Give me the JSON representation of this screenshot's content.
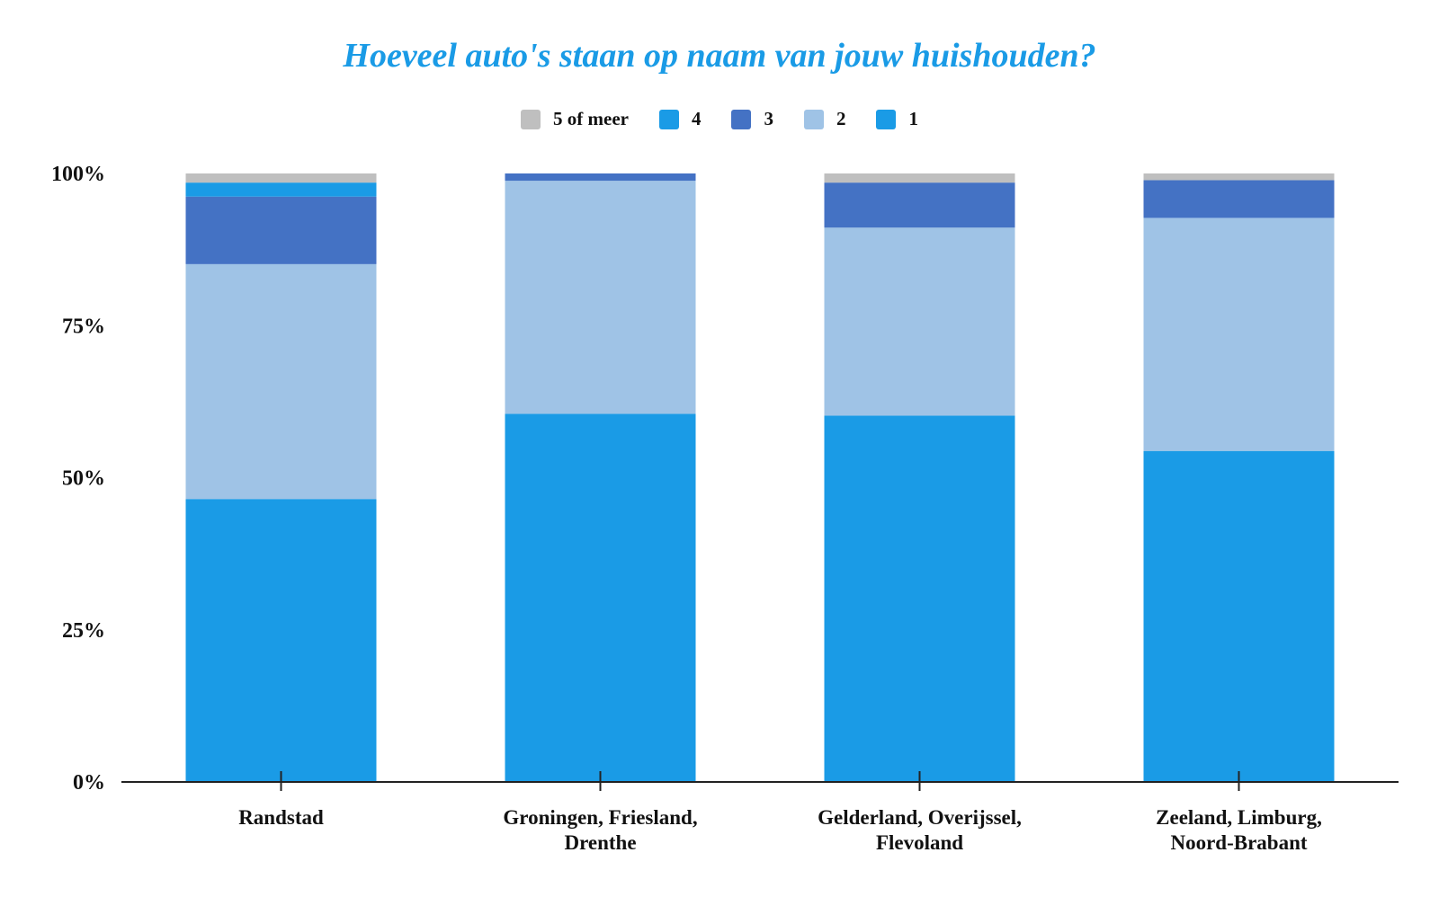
{
  "chart_data": {
    "type": "bar",
    "stacked": true,
    "title": "Hoeveel auto's staan op naam van jouw huishouden?",
    "title_color": "#1a9be6",
    "xlabel": "",
    "ylabel": "",
    "ylim": [
      0,
      100
    ],
    "yticks": [
      "0%",
      "25%",
      "50%",
      "75%",
      "100%"
    ],
    "legend_position": "top-center",
    "grid": false,
    "categories": [
      [
        "Randstad"
      ],
      [
        "Groningen, Friesland,",
        "Drenthe"
      ],
      [
        "Gelderland, Overijssel,",
        "Flevoland"
      ],
      [
        "Zeeland, Limburg,",
        "Noord-Brabant"
      ]
    ],
    "series": [
      {
        "name": "1",
        "color": "#1a9be6",
        "values": [
          46.5,
          60.5,
          60.2,
          54.4
        ]
      },
      {
        "name": "2",
        "color": "#9fc3e6",
        "values": [
          38.6,
          38.3,
          30.9,
          38.3
        ]
      },
      {
        "name": "3",
        "color": "#4472c4",
        "values": [
          11.1,
          1.2,
          7.4,
          6.2
        ]
      },
      {
        "name": "4",
        "color": "#1a9be6",
        "values": [
          2.3,
          0,
          0,
          0
        ]
      },
      {
        "name": "5 of meer",
        "color": "#bfbfbf",
        "values": [
          1.5,
          0,
          1.5,
          1.1
        ]
      }
    ],
    "legend_order": [
      "5 of meer",
      "4",
      "3",
      "2",
      "1"
    ]
  }
}
